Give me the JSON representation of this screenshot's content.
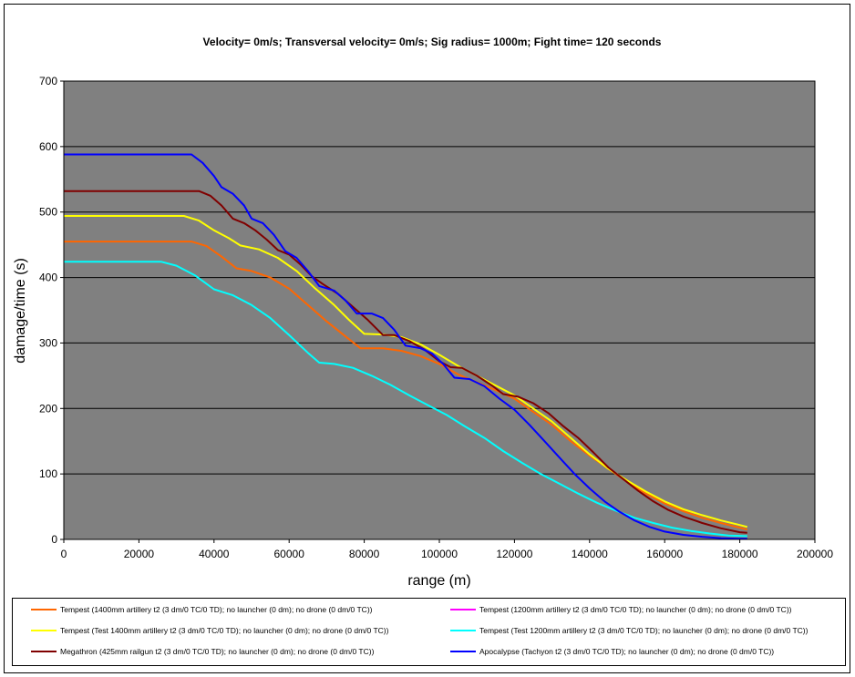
{
  "chart_data": {
    "type": "line",
    "title": "Velocity= 0m/s; Transversal velocity= 0m/s; Sig radius= 1000m; Fight time= 120 seconds",
    "xlabel": "range (m)",
    "ylabel": "damage/time (s)",
    "xlim": [
      0,
      200000
    ],
    "ylim": [
      0,
      700
    ],
    "x_ticks": [
      "0",
      "20000",
      "40000",
      "60000",
      "80000",
      "100000",
      "120000",
      "140000",
      "160000",
      "180000",
      "200000"
    ],
    "y_ticks": [
      "0",
      "100",
      "200",
      "300",
      "400",
      "500",
      "600",
      "700"
    ],
    "grid": "horizontal",
    "legend_position": "bottom",
    "plot_background": "#808080",
    "series": [
      {
        "name": "Tempest (1400mm artillery t2 (3 dm/0 TC/0 TD); no launcher (0 dm); no drone (0 dm/0 TC))",
        "color": "#ff6600",
        "points": [
          [
            0,
            455
          ],
          [
            34000,
            455
          ],
          [
            38000,
            448
          ],
          [
            42000,
            432
          ],
          [
            46000,
            414
          ],
          [
            50000,
            410
          ],
          [
            55000,
            400
          ],
          [
            60000,
            383
          ],
          [
            65000,
            358
          ],
          [
            70000,
            333
          ],
          [
            75000,
            310
          ],
          [
            79000,
            292
          ],
          [
            85000,
            292
          ],
          [
            90000,
            288
          ],
          [
            95000,
            280
          ],
          [
            100000,
            268
          ],
          [
            105000,
            252
          ],
          [
            110000,
            240
          ],
          [
            115000,
            228
          ],
          [
            120000,
            215
          ],
          [
            125000,
            195
          ],
          [
            130000,
            175
          ],
          [
            135000,
            150
          ],
          [
            140000,
            128
          ],
          [
            145000,
            108
          ],
          [
            150000,
            88
          ],
          [
            155000,
            70
          ],
          [
            160000,
            55
          ],
          [
            165000,
            43
          ],
          [
            170000,
            33
          ],
          [
            175000,
            25
          ],
          [
            180000,
            18
          ],
          [
            182000,
            15
          ]
        ]
      },
      {
        "name": "Tempest (1200mm artillery t2 (3 dm/0 TC/0 TD); no launcher (0 dm); no drone (0 dm/0 TC))",
        "color": "#ff00ff",
        "points": []
      },
      {
        "name": "Tempest (Test 1400mm artillery t2 (3 dm/0 TC/0 TD); no launcher (0 dm); no drone (0 dm/0 TC))",
        "color": "#ffff00",
        "points": [
          [
            0,
            494
          ],
          [
            32000,
            494
          ],
          [
            36000,
            487
          ],
          [
            40000,
            472
          ],
          [
            44000,
            460
          ],
          [
            47000,
            449
          ],
          [
            52000,
            443
          ],
          [
            57000,
            430
          ],
          [
            62000,
            410
          ],
          [
            67000,
            383
          ],
          [
            72000,
            358
          ],
          [
            76000,
            335
          ],
          [
            80000,
            314
          ],
          [
            85000,
            313
          ],
          [
            90000,
            309
          ],
          [
            95000,
            298
          ],
          [
            100000,
            282
          ],
          [
            105000,
            265
          ],
          [
            110000,
            250
          ],
          [
            115000,
            235
          ],
          [
            120000,
            220
          ],
          [
            125000,
            200
          ],
          [
            130000,
            180
          ],
          [
            135000,
            155
          ],
          [
            140000,
            130
          ],
          [
            145000,
            108
          ],
          [
            150000,
            90
          ],
          [
            155000,
            73
          ],
          [
            160000,
            58
          ],
          [
            165000,
            46
          ],
          [
            170000,
            37
          ],
          [
            175000,
            29
          ],
          [
            180000,
            22
          ],
          [
            182000,
            19
          ]
        ]
      },
      {
        "name": "Tempest (Test 1200mm artillery t2 (3 dm/0 TC/0 TD); no launcher (0 dm); no drone (0 dm/0 TC))",
        "color": "#00ffff",
        "points": [
          [
            0,
            424
          ],
          [
            26000,
            424
          ],
          [
            30000,
            418
          ],
          [
            35000,
            403
          ],
          [
            40000,
            382
          ],
          [
            45000,
            373
          ],
          [
            50000,
            358
          ],
          [
            55000,
            338
          ],
          [
            60000,
            312
          ],
          [
            65000,
            285
          ],
          [
            68000,
            270
          ],
          [
            72000,
            268
          ],
          [
            77000,
            262
          ],
          [
            82000,
            250
          ],
          [
            87000,
            236
          ],
          [
            92000,
            220
          ],
          [
            97000,
            205
          ],
          [
            102000,
            190
          ],
          [
            107000,
            172
          ],
          [
            112000,
            155
          ],
          [
            117000,
            135
          ],
          [
            122000,
            117
          ],
          [
            127000,
            100
          ],
          [
            132000,
            85
          ],
          [
            137000,
            70
          ],
          [
            142000,
            56
          ],
          [
            147000,
            44
          ],
          [
            152000,
            33
          ],
          [
            157000,
            25
          ],
          [
            162000,
            18
          ],
          [
            167000,
            13
          ],
          [
            172000,
            9
          ],
          [
            177000,
            6
          ],
          [
            182000,
            5
          ]
        ]
      },
      {
        "name": "Megathron (425mm railgun t2 (3 dm/0 TC/0 TD); no launcher (0 dm); no drone (0 dm/0 TC))",
        "color": "#800000",
        "points": [
          [
            0,
            532
          ],
          [
            36000,
            532
          ],
          [
            39000,
            525
          ],
          [
            42000,
            510
          ],
          [
            45000,
            490
          ],
          [
            48000,
            483
          ],
          [
            51000,
            472
          ],
          [
            54000,
            458
          ],
          [
            57000,
            442
          ],
          [
            60000,
            435
          ],
          [
            63000,
            420
          ],
          [
            66000,
            402
          ],
          [
            69000,
            390
          ],
          [
            73000,
            375
          ],
          [
            77000,
            355
          ],
          [
            81000,
            335
          ],
          [
            85000,
            312
          ],
          [
            88000,
            312
          ],
          [
            92000,
            303
          ],
          [
            96000,
            290
          ],
          [
            100000,
            272
          ],
          [
            103000,
            263
          ],
          [
            106000,
            262
          ],
          [
            110000,
            250
          ],
          [
            114000,
            235
          ],
          [
            117000,
            222
          ],
          [
            121000,
            218
          ],
          [
            125000,
            208
          ],
          [
            129000,
            193
          ],
          [
            133000,
            173
          ],
          [
            137000,
            155
          ],
          [
            141000,
            133
          ],
          [
            145000,
            110
          ],
          [
            149000,
            92
          ],
          [
            153000,
            74
          ],
          [
            157000,
            58
          ],
          [
            161000,
            45
          ],
          [
            165000,
            35
          ],
          [
            170000,
            25
          ],
          [
            175000,
            17
          ],
          [
            180000,
            11
          ],
          [
            182000,
            10
          ]
        ]
      },
      {
        "name": "Apocalypse (Tachyon t2 (3 dm/0 TC/0 TD); no launcher (0 dm); no drone (0 dm/0 TC))",
        "color": "#0000ff",
        "points": [
          [
            0,
            588
          ],
          [
            34000,
            588
          ],
          [
            37000,
            575
          ],
          [
            40000,
            555
          ],
          [
            42000,
            538
          ],
          [
            45000,
            528
          ],
          [
            48000,
            510
          ],
          [
            50000,
            490
          ],
          [
            53000,
            483
          ],
          [
            56000,
            465
          ],
          [
            59000,
            440
          ],
          [
            62000,
            430
          ],
          [
            65000,
            410
          ],
          [
            68000,
            387
          ],
          [
            72000,
            380
          ],
          [
            75000,
            365
          ],
          [
            78000,
            345
          ],
          [
            82000,
            345
          ],
          [
            85000,
            338
          ],
          [
            88000,
            320
          ],
          [
            91000,
            296
          ],
          [
            95000,
            292
          ],
          [
            98000,
            284
          ],
          [
            101000,
            268
          ],
          [
            104000,
            247
          ],
          [
            108000,
            245
          ],
          [
            112000,
            234
          ],
          [
            116000,
            215
          ],
          [
            120000,
            198
          ],
          [
            124000,
            175
          ],
          [
            128000,
            150
          ],
          [
            132000,
            125
          ],
          [
            136000,
            100
          ],
          [
            140000,
            78
          ],
          [
            144000,
            58
          ],
          [
            148000,
            42
          ],
          [
            152000,
            29
          ],
          [
            156000,
            19
          ],
          [
            160000,
            12
          ],
          [
            165000,
            7
          ],
          [
            170000,
            4
          ],
          [
            175000,
            2
          ],
          [
            180000,
            1
          ],
          [
            182000,
            1
          ]
        ]
      }
    ]
  }
}
